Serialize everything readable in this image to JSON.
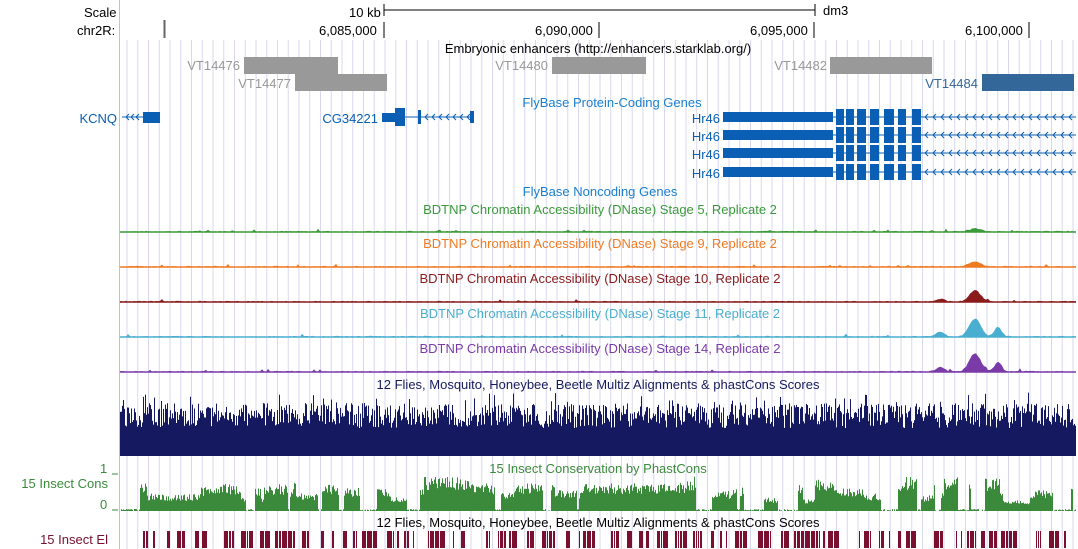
{
  "ruler": {
    "scale_label": "Scale",
    "chrom_label": "chr2R:",
    "scale_bar_label": "10 kb",
    "assembly": "dm3",
    "positions": [
      "6,085,000",
      "6,090,000",
      "6,095,000",
      "6,100,000"
    ]
  },
  "tracks": {
    "enhancers": {
      "title": "Embryonic enhancers (http://enhancers.starklab.org/)",
      "items": [
        "VT14476",
        "VT14477",
        "VT14480",
        "VT14482",
        "VT14484"
      ]
    },
    "protein_genes": {
      "title": "FlyBase Protein-Coding Genes",
      "genes": [
        "KCNQ",
        "CG34221",
        "Hr46",
        "Hr46",
        "Hr46",
        "Hr46"
      ]
    },
    "noncoding": {
      "title": "FlyBase Noncoding Genes"
    },
    "dnase": [
      {
        "title": "BDTNP Chromatin Accessibility (DNase) Stage 5, Replicate 2",
        "color": "#3a9a3a"
      },
      {
        "title": "BDTNP Chromatin Accessibility (DNase) Stage 9, Replicate 2",
        "color": "#f07a22"
      },
      {
        "title": "BDTNP Chromatin Accessibility (DNase) Stage 10, Replicate 2",
        "color": "#8b1a1a"
      },
      {
        "title": "BDTNP Chromatin Accessibility (DNase) Stage 11, Replicate 2",
        "color": "#4aaed0"
      },
      {
        "title": "BDTNP Chromatin Accessibility (DNase) Stage 14, Replicate 2",
        "color": "#7a3aa8"
      }
    ],
    "multiz": {
      "title": "12 Flies, Mosquito, Honeybee, Beetle Multiz Alignments & phastCons Scores"
    },
    "phastcons": {
      "title": "15 Insect Conservation by PhastCons",
      "label": "15 Insect Cons",
      "scale_max": "1",
      "scale_min": "0"
    },
    "elements": {
      "title": "12 Flies, Mosquito, Honeybee, Beetle Multiz Alignments & phastCons Scores",
      "label": "15 Insect El"
    }
  },
  "colors": {
    "enhancer_gray": "#999999",
    "enhancer_blue": "#336699",
    "gene_blue": "#0a5fb4",
    "multiz_navy": "#151a60",
    "cons_green": "#3b8a3b",
    "elements_maroon": "#7a1030",
    "grid": "#d8d8f0"
  }
}
